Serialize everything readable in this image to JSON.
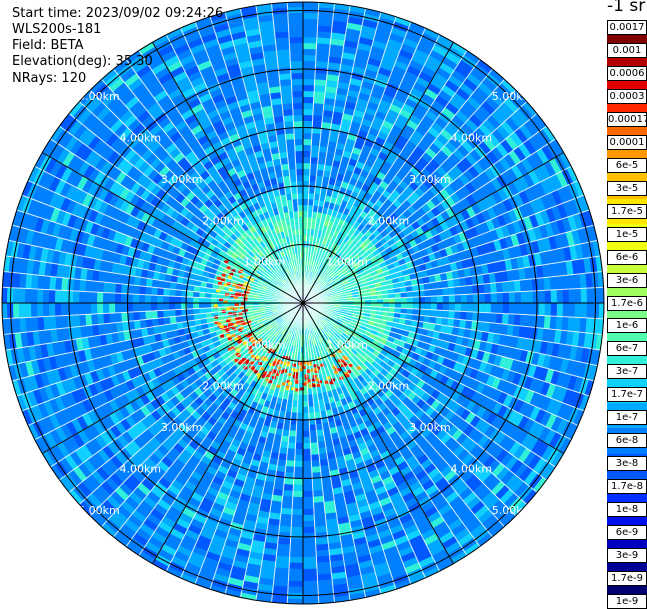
{
  "header": {
    "start_time": "Start time: 2023/09/02 09:24:26",
    "device": "WLS200s-181",
    "field": "Field: BETA",
    "elevation": "Elevation(deg): 35.30",
    "nrays": "NRays: 120"
  },
  "colorbar": {
    "unit": "-1 sr",
    "ticks": [
      "0.0017",
      "0.001",
      "0.0006",
      "0.0003",
      "0.00017",
      "0.0001",
      "6e-5",
      "3e-5",
      "1.7e-5",
      "1e-5",
      "6e-6",
      "3e-6",
      "1.7e-6",
      "1e-6",
      "6e-7",
      "3e-7",
      "1.7e-7",
      "1e-7",
      "6e-8",
      "3e-8",
      "1.7e-8",
      "1e-8",
      "6e-9",
      "3e-9",
      "1.7e-9",
      "1e-9"
    ],
    "colors": [
      "#7f0000",
      "#b30000",
      "#e00000",
      "#ff2a00",
      "#ff6a00",
      "#ff9800",
      "#ffc000",
      "#ffe600",
      "#f0ff10",
      "#c8ff38",
      "#a0ff60",
      "#78ff88",
      "#50ffb0",
      "#30f0d8",
      "#10d0ff",
      "#00a8ff",
      "#0080ff",
      "#0058ff",
      "#0030ff",
      "#0010e8",
      "#0000c0",
      "#000098",
      "#000070"
    ]
  },
  "plot": {
    "range_rings_km": [
      1,
      2,
      3,
      4,
      5
    ],
    "range_labels": [
      "1.00km",
      "2.00km",
      "3.00km",
      "4.00km",
      "5.00km"
    ],
    "nrays": 120,
    "max_range_km": 5.3
  }
}
